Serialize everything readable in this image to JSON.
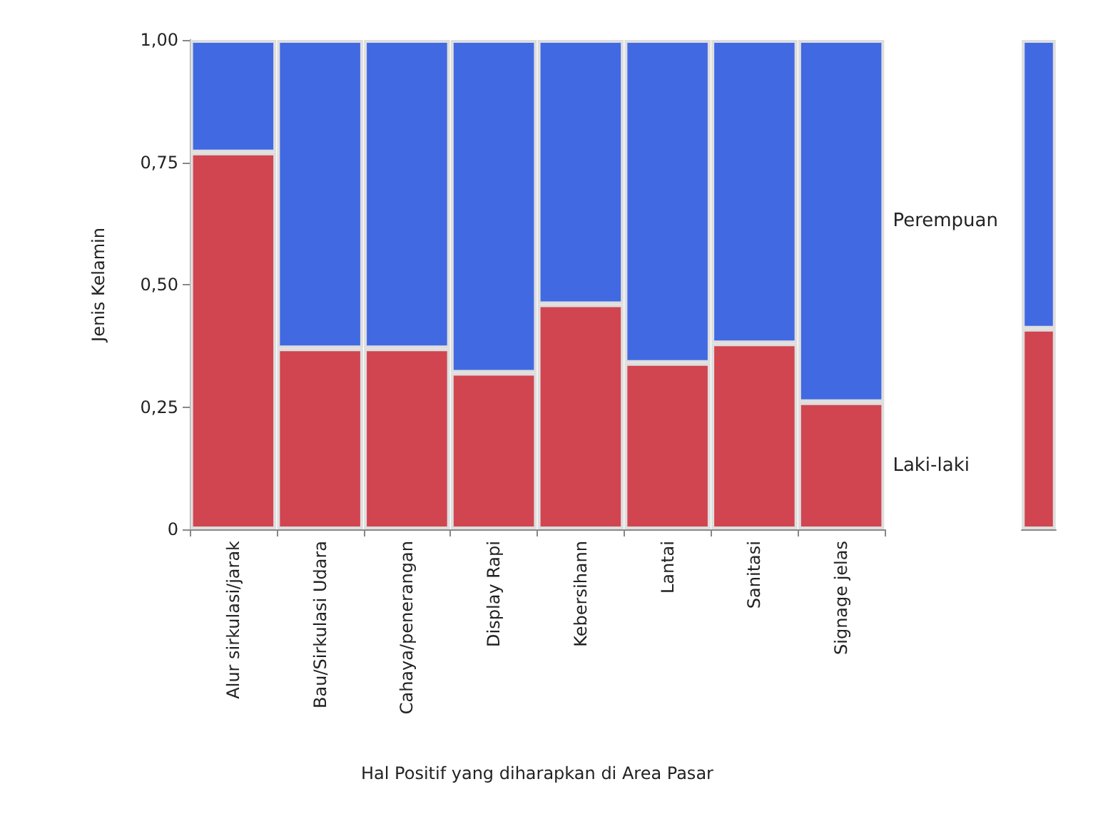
{
  "chart_data": [
    {
      "type": "bar",
      "stacked": true,
      "xlabel": "Hal Positif yang diharapkan di Area Pasar",
      "ylabel": "Jenis Kelamin",
      "categories": [
        "Alur sirkulasi/jarak",
        "Bau/Sirkulasi Udara",
        "Cahaya/penerangan",
        "Display Rapi",
        "Kebersihann",
        "Lantai",
        "Sanitasi",
        "Signage jelas"
      ],
      "series": [
        {
          "name": "Laki-laki",
          "color": "#d0454f",
          "values": [
            0.77,
            0.37,
            0.37,
            0.32,
            0.46,
            0.34,
            0.38,
            0.26
          ]
        },
        {
          "name": "Perempuan",
          "color": "#4169e1",
          "values": [
            0.23,
            0.63,
            0.63,
            0.68,
            0.54,
            0.66,
            0.62,
            0.74
          ]
        }
      ],
      "ylim": [
        0,
        1
      ],
      "yticks": [
        0,
        {
          "value": 0.25,
          "label": "0,25"
        },
        {
          "value": 0.5,
          "label": "0,50"
        },
        {
          "value": 0.75,
          "label": "0,75"
        },
        {
          "value": 1,
          "label": "1,00"
        }
      ],
      "grid": false
    },
    {
      "type": "bar",
      "stacked": true,
      "categories": [
        null
      ],
      "series": [
        {
          "color": "#d0454f",
          "values": [
            0.41
          ]
        },
        {
          "color": "#4169e1",
          "values": [
            0.59
          ]
        }
      ],
      "ylim": [
        0,
        1
      ],
      "tick_labels": false
    }
  ]
}
